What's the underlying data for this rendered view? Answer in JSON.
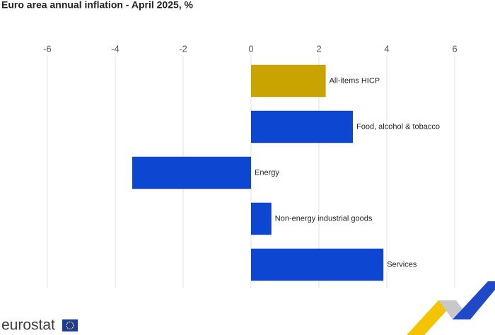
{
  "chart_data": {
    "type": "bar",
    "orientation": "horizontal",
    "title": "Euro area annual inflation - April 2025, %",
    "categories": [
      "All-items HICP",
      "Food, alcohol & tobacco",
      "Energy",
      "Non-energy industrial goods",
      "Services"
    ],
    "values": [
      2.2,
      3.0,
      -3.5,
      0.6,
      3.9
    ],
    "colors": [
      "#c9a400",
      "#0d47d1",
      "#0d47d1",
      "#0d47d1",
      "#0d47d1"
    ],
    "xlim": [
      -6,
      6
    ],
    "xticks": [
      -6,
      -4,
      -2,
      0,
      2,
      4,
      6
    ],
    "grid": true
  },
  "footer": {
    "logo": "eurostat"
  }
}
